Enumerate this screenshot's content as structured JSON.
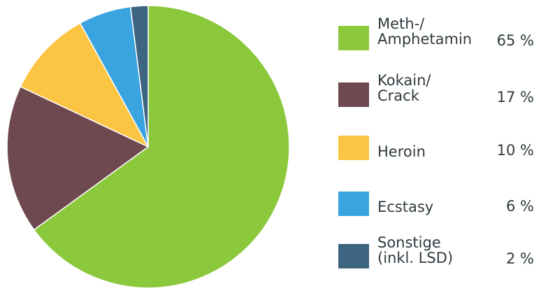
{
  "chart_data": {
    "type": "pie",
    "title": "",
    "slices": [
      {
        "label": "Meth-/\nAmphetamin",
        "value": 65,
        "display": "65 %",
        "color": "#8cc83c"
      },
      {
        "label": "Kokain/\nCrack",
        "value": 17,
        "display": "17 %",
        "color": "#6e4a50"
      },
      {
        "label": "Heroin",
        "value": 10,
        "display": "10 %",
        "color": "#fbc443"
      },
      {
        "label": "Ecstasy",
        "value": 6,
        "display": "6 %",
        "color": "#3aa4e0"
      },
      {
        "label": "Sonstige\n(inkl. LSD)",
        "value": 2,
        "display": "2 %",
        "color": "#3d6480"
      }
    ]
  }
}
